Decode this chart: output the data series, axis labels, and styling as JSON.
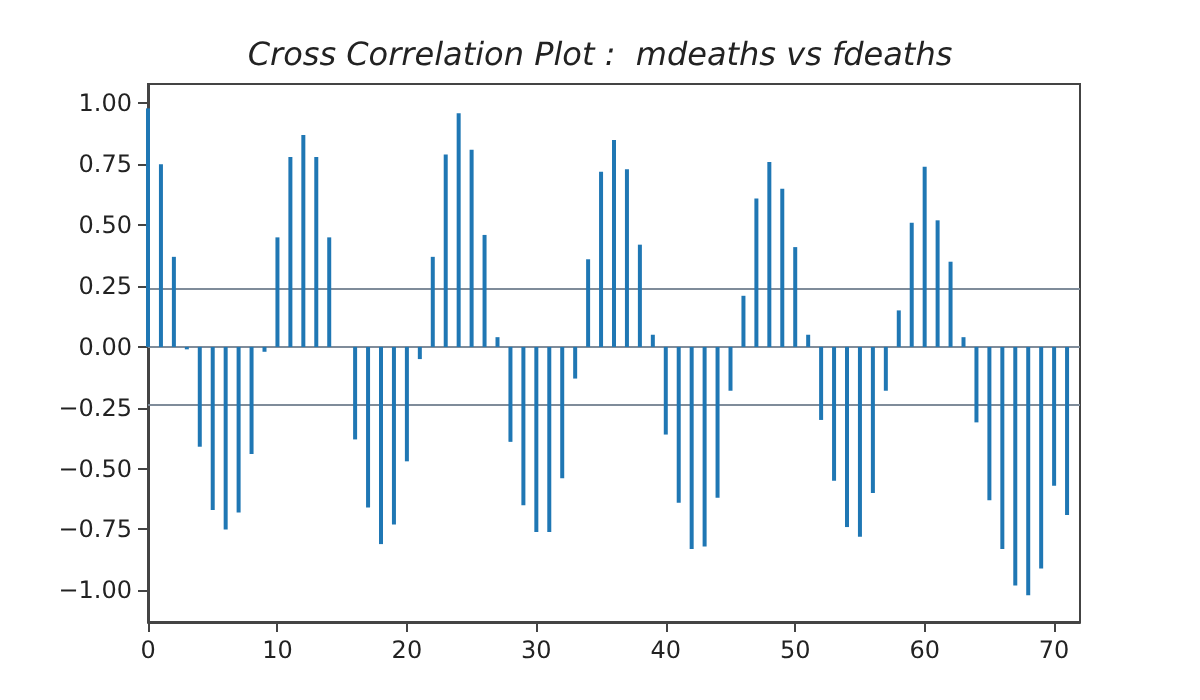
{
  "chart_data": {
    "type": "bar",
    "title": "Cross Correlation Plot :  mdeaths vs fdeaths",
    "x": [
      0,
      1,
      2,
      3,
      4,
      5,
      6,
      7,
      8,
      9,
      10,
      11,
      12,
      13,
      14,
      15,
      16,
      17,
      18,
      19,
      20,
      21,
      22,
      23,
      24,
      25,
      26,
      27,
      28,
      29,
      30,
      31,
      32,
      33,
      34,
      35,
      36,
      37,
      38,
      39,
      40,
      41,
      42,
      43,
      44,
      45,
      46,
      47,
      48,
      49,
      50,
      51,
      52,
      53,
      54,
      55,
      56,
      57,
      58,
      59,
      60,
      61,
      62,
      63,
      64,
      65,
      66,
      67,
      68,
      69,
      70,
      71
    ],
    "values": [
      0.98,
      0.75,
      0.37,
      -0.01,
      -0.41,
      -0.67,
      -0.75,
      -0.68,
      -0.44,
      -0.02,
      0.45,
      0.78,
      0.87,
      0.78,
      0.45,
      0.0,
      -0.38,
      -0.66,
      -0.81,
      -0.73,
      -0.47,
      -0.05,
      0.37,
      0.79,
      0.96,
      0.81,
      0.46,
      0.04,
      -0.39,
      -0.65,
      -0.76,
      -0.76,
      -0.54,
      -0.13,
      0.36,
      0.72,
      0.85,
      0.73,
      0.42,
      0.05,
      -0.36,
      -0.64,
      -0.83,
      -0.82,
      -0.62,
      -0.18,
      0.21,
      0.61,
      0.76,
      0.65,
      0.41,
      0.05,
      -0.3,
      -0.55,
      -0.74,
      -0.78,
      -0.6,
      -0.18,
      0.15,
      0.51,
      0.74,
      0.52,
      0.35,
      0.04,
      -0.31,
      -0.63,
      -0.83,
      -0.98,
      -1.02,
      -0.91,
      -0.57,
      -0.69
    ],
    "color": "#1f77b4",
    "xlim": [
      0,
      72
    ],
    "xticks": [
      0,
      10,
      20,
      30,
      40,
      50,
      60,
      70
    ],
    "ylim": [
      -1.13,
      1.08
    ],
    "yticks": [
      {
        "value": -1,
        "label": "−1.00"
      },
      {
        "value": -0.75,
        "label": "−0.75"
      },
      {
        "value": -0.5,
        "label": "−0.50"
      },
      {
        "value": -0.25,
        "label": "−0.25"
      },
      {
        "value": 0,
        "label": "0.00"
      },
      {
        "value": 0.25,
        "label": "0.25"
      },
      {
        "value": 0.5,
        "label": "0.50"
      },
      {
        "value": 0.75,
        "label": "0.75"
      },
      {
        "value": 1,
        "label": "1.00"
      }
    ],
    "ref_lines": [
      {
        "axis": "y",
        "value": 0.24,
        "color": "#7f8c9a"
      },
      {
        "axis": "y",
        "value": 0,
        "color": "#7f8c9a"
      },
      {
        "axis": "y",
        "value": -0.24,
        "color": "#7f8c9a"
      }
    ],
    "grid": false
  }
}
